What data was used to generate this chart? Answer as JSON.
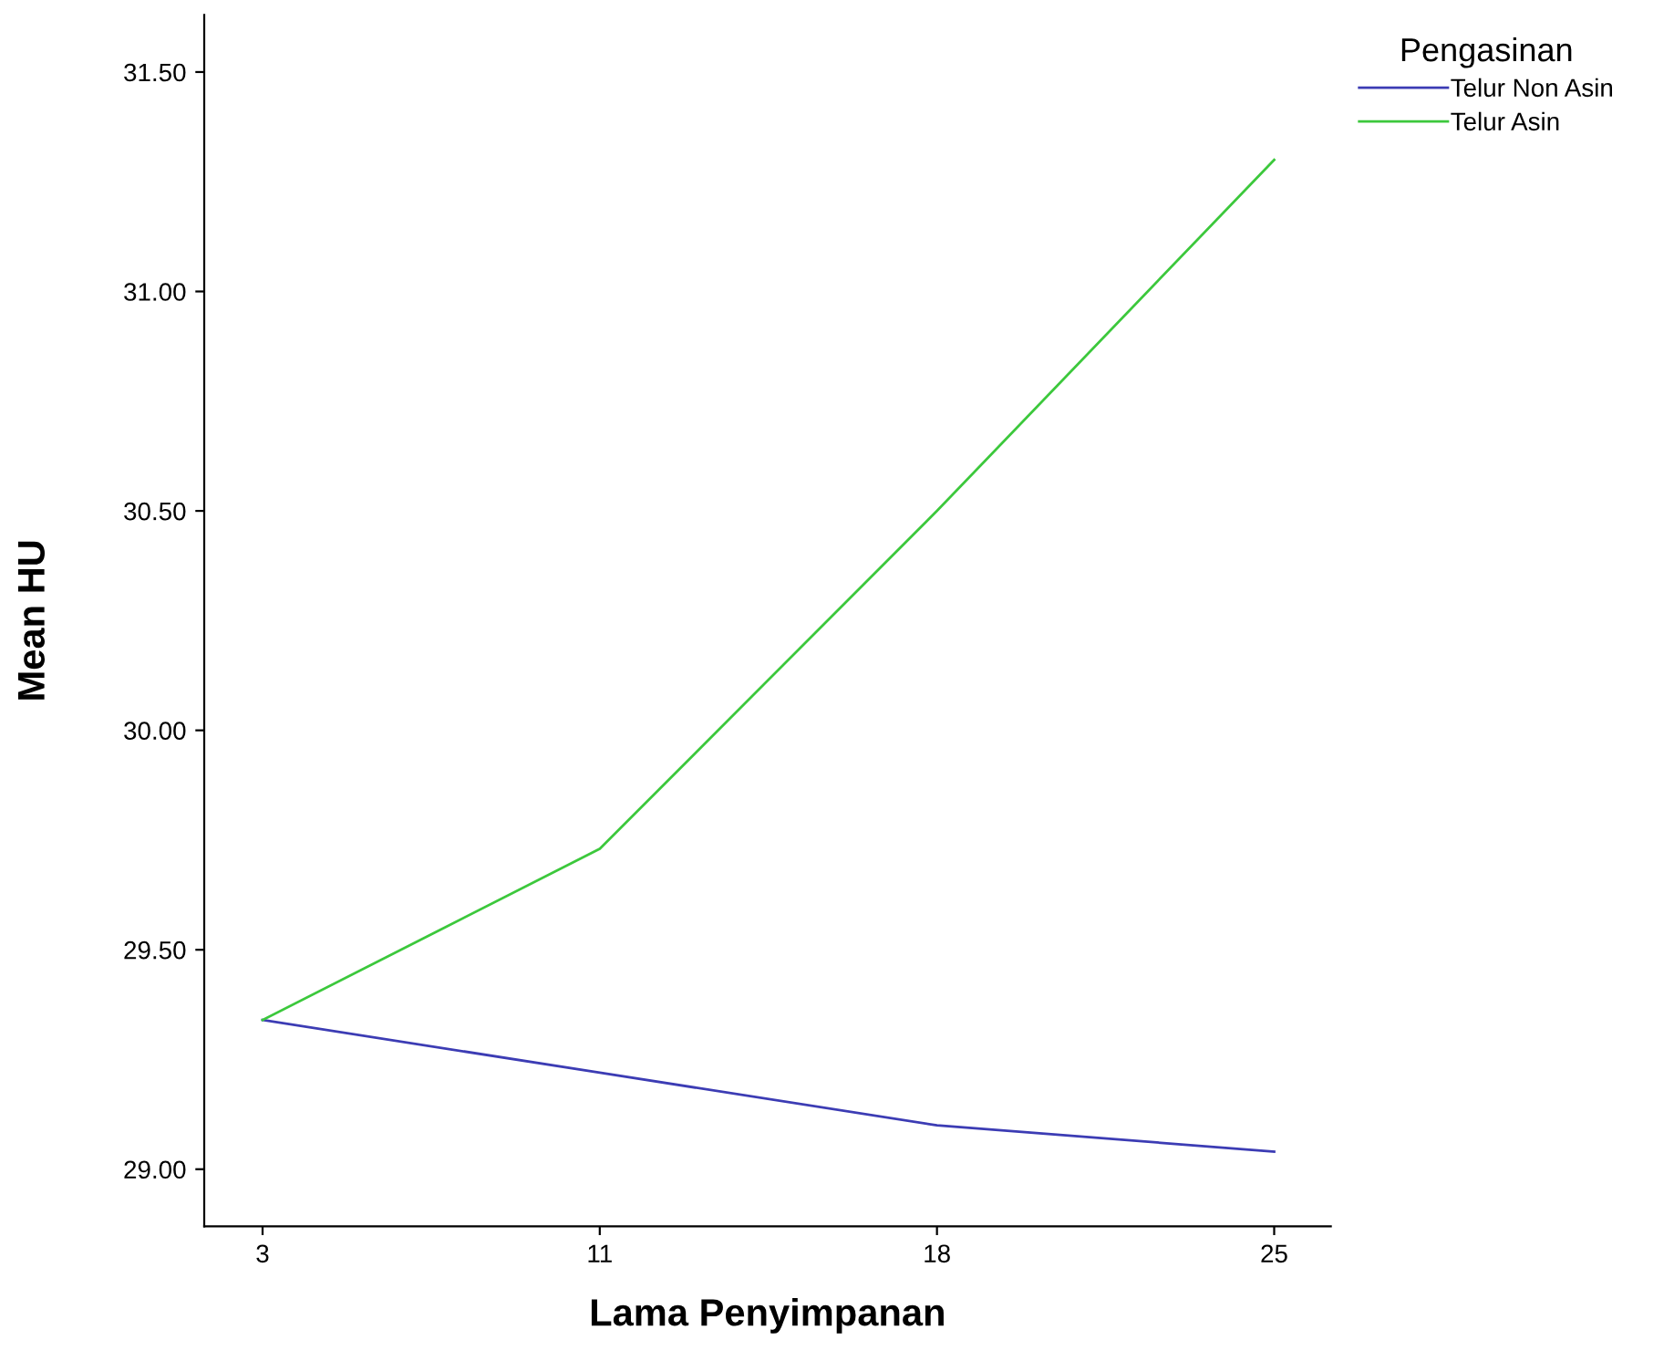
{
  "chart_data": {
    "type": "line",
    "xlabel": "Lama Penyimpanan",
    "ylabel": "Mean HU",
    "legend_title": "Pengasinan",
    "categories": [
      "3",
      "11",
      "18",
      "25"
    ],
    "series": [
      {
        "name": "Telur Non Asin",
        "color": "#3c3cb4",
        "values": [
          29.34,
          29.22,
          29.1,
          29.04
        ]
      },
      {
        "name": "Telur Asin",
        "color": "#3cc83c",
        "values": [
          29.34,
          29.73,
          30.5,
          31.3
        ]
      }
    ],
    "ylim": [
      28.87,
      31.63
    ],
    "yticks": [
      {
        "value": 29.0,
        "label": "29.00"
      },
      {
        "value": 29.5,
        "label": "29.50"
      },
      {
        "value": 30.0,
        "label": "30.00"
      },
      {
        "value": 30.5,
        "label": "30.50"
      },
      {
        "value": 31.0,
        "label": "31.00"
      },
      {
        "value": 31.5,
        "label": "31.50"
      }
    ],
    "grid": false,
    "legend": "top right",
    "marker": "none",
    "line_style": "solid"
  }
}
